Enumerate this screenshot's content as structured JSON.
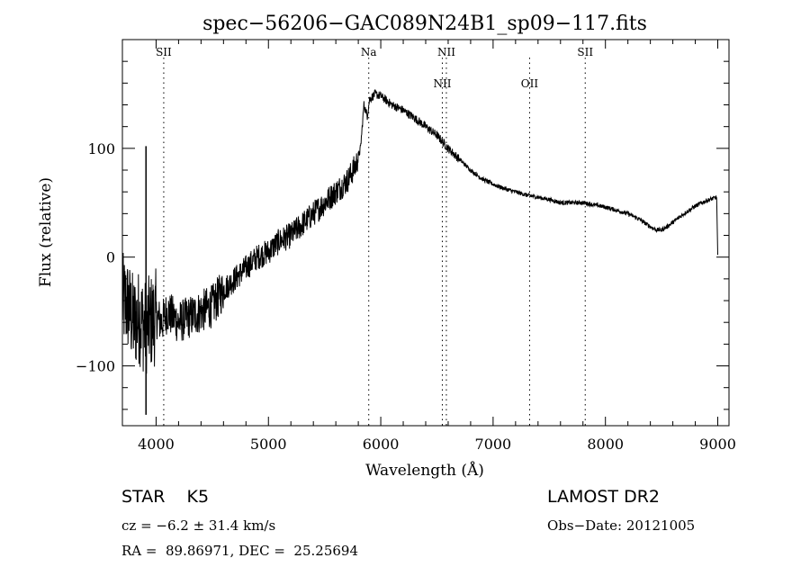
{
  "chart_data": {
    "type": "line",
    "title": "spec−56206−GAC089N24B1_sp09−117.fits",
    "xlabel": "Wavelength (Å)",
    "ylabel": "Flux (relative)",
    "xlim": [
      3700,
      9100
    ],
    "ylim": [
      -155,
      200
    ],
    "xticks": [
      4000,
      5000,
      6000,
      7000,
      8000,
      9000
    ],
    "yticks": [
      -100,
      0,
      100
    ],
    "ytick_labels": [
      "−100",
      "0",
      "100"
    ],
    "grid": false,
    "series": [
      {
        "x": [
          3700,
          3750,
          3800,
          3850,
          3900,
          3950,
          4000,
          4050,
          4100,
          4200,
          4300,
          4400,
          4500,
          4600,
          4700,
          4800,
          4900,
          5000,
          5100,
          5200,
          5300,
          5400,
          5500,
          5600,
          5700,
          5780,
          5820,
          5850,
          5880,
          5900,
          5950,
          6000,
          6100,
          6200,
          6300,
          6400,
          6500,
          6600,
          6700,
          6800,
          6900,
          7000,
          7100,
          7200,
          7300,
          7400,
          7500,
          7600,
          7700,
          7800,
          7900,
          8000,
          8100,
          8200,
          8300,
          8400,
          8450,
          8500,
          8550,
          8600,
          8700,
          8800,
          8900,
          8990,
          9000
        ],
        "y": [
          -40,
          -45,
          -60,
          -55,
          -65,
          -60,
          -55,
          -60,
          -50,
          -60,
          -55,
          -50,
          -45,
          -30,
          -20,
          -10,
          0,
          5,
          15,
          20,
          30,
          40,
          50,
          60,
          70,
          85,
          100,
          140,
          130,
          145,
          150,
          148,
          140,
          135,
          128,
          120,
          112,
          100,
          90,
          80,
          72,
          67,
          63,
          60,
          57,
          55,
          53,
          50,
          50,
          50,
          48,
          46,
          43,
          40,
          35,
          28,
          25,
          25,
          28,
          32,
          40,
          47,
          52,
          55,
          2
        ]
      }
    ],
    "noise_amplitude": [
      {
        "from": 3700,
        "to": 4000,
        "amp": 45
      },
      {
        "from": 4000,
        "to": 4600,
        "amp": 20
      },
      {
        "from": 4600,
        "to": 5800,
        "amp": 12
      },
      {
        "from": 5800,
        "to": 6700,
        "amp": 4
      },
      {
        "from": 6700,
        "to": 9000,
        "amp": 2
      }
    ],
    "spike": {
      "x": 3910,
      "top": 102,
      "bottom": -145
    },
    "reference_lines": [
      {
        "label": "SII",
        "x": 4068,
        "label_level": "top"
      },
      {
        "label": "Na",
        "x": 5893,
        "label_level": "top"
      },
      {
        "label": "NII",
        "x": 6548,
        "label_level": "lower"
      },
      {
        "label": "NII",
        "x": 6584,
        "label_level": "top"
      },
      {
        "label": "OII",
        "x": 7325,
        "label_level": "lower"
      },
      {
        "label": "SII",
        "x": 7820,
        "label_level": "top"
      }
    ]
  },
  "info": {
    "object_type": "STAR    K5",
    "redshift": "cz = −6.2 ± 31.4 km/s",
    "coordinates": "RA =  89.86971, DEC =  25.25694",
    "survey": "LAMOST DR2",
    "obs_date": "Obs−Date: 20121005"
  }
}
